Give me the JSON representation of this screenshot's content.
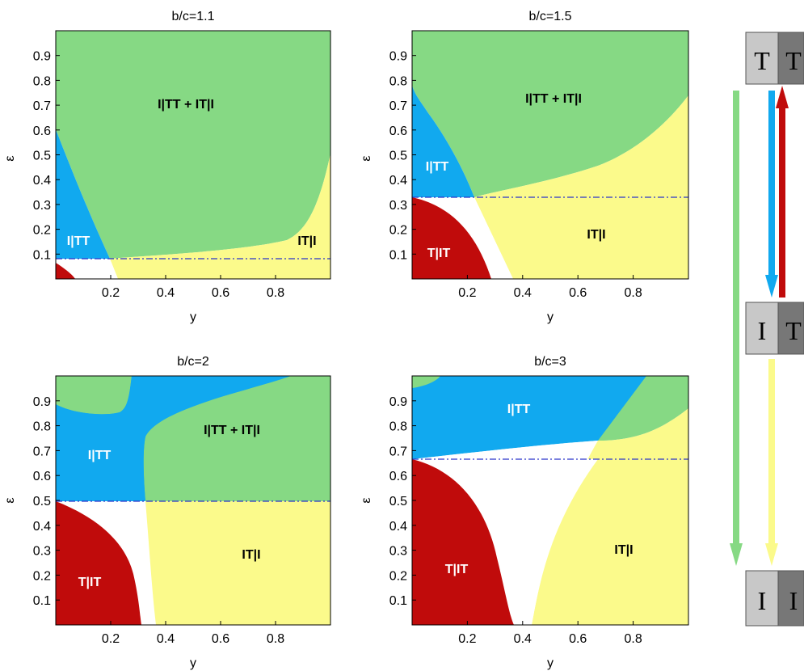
{
  "colors": {
    "green": "#86d984",
    "blue": "#11a9ef",
    "yellow": "#fbfa8b",
    "red": "#c00b0b",
    "threshold_line": "#2a35c9",
    "box_light": "#c8c8c8",
    "box_dark": "#777777"
  },
  "chart_data": [
    {
      "type": "area",
      "title": "b/c=1.1",
      "xlabel": "y",
      "ylabel": "ε",
      "xlim": [
        0,
        1
      ],
      "ylim": [
        0,
        1
      ],
      "xticks": [
        "0.2",
        "0.4",
        "0.6",
        "0.8"
      ],
      "yticks": [
        "0.1",
        "0.2",
        "0.3",
        "0.4",
        "0.5",
        "0.6",
        "0.7",
        "0.8",
        "0.9"
      ],
      "threshold_epsilon": 0.091,
      "regions": [
        {
          "label": "I|TT + IT|I",
          "color": "green"
        },
        {
          "label": "I|TT",
          "color": "blue"
        },
        {
          "label": "IT|I",
          "color": "yellow"
        },
        {
          "label": "",
          "color": "red"
        }
      ]
    },
    {
      "type": "area",
      "title": "b/c=1.5",
      "xlabel": "y",
      "ylabel": "ε",
      "xlim": [
        0,
        1
      ],
      "ylim": [
        0,
        1
      ],
      "xticks": [
        "0.2",
        "0.4",
        "0.6",
        "0.8"
      ],
      "yticks": [
        "0.1",
        "0.2",
        "0.3",
        "0.4",
        "0.5",
        "0.6",
        "0.7",
        "0.8",
        "0.9"
      ],
      "threshold_epsilon": 0.333,
      "regions": [
        {
          "label": "I|TT + IT|I",
          "color": "green"
        },
        {
          "label": "I|TT",
          "color": "blue"
        },
        {
          "label": "IT|I",
          "color": "yellow"
        },
        {
          "label": "T|IT",
          "color": "red"
        }
      ]
    },
    {
      "type": "area",
      "title": "b/c=2",
      "xlabel": "y",
      "ylabel": "ε",
      "xlim": [
        0,
        1
      ],
      "ylim": [
        0,
        1
      ],
      "xticks": [
        "0.2",
        "0.4",
        "0.6",
        "0.8"
      ],
      "yticks": [
        "0.1",
        "0.2",
        "0.3",
        "0.4",
        "0.5",
        "0.6",
        "0.7",
        "0.8",
        "0.9"
      ],
      "threshold_epsilon": 0.5,
      "regions": [
        {
          "label": "I|TT + IT|I",
          "color": "green"
        },
        {
          "label": "I|TT",
          "color": "blue"
        },
        {
          "label": "IT|I",
          "color": "yellow"
        },
        {
          "label": "T|IT",
          "color": "red"
        }
      ]
    },
    {
      "type": "area",
      "title": "b/c=3",
      "xlabel": "y",
      "ylabel": "ε",
      "xlim": [
        0,
        1
      ],
      "ylim": [
        0,
        1
      ],
      "xticks": [
        "0.2",
        "0.4",
        "0.6",
        "0.8"
      ],
      "yticks": [
        "0.1",
        "0.2",
        "0.3",
        "0.4",
        "0.5",
        "0.6",
        "0.7",
        "0.8",
        "0.9"
      ],
      "threshold_epsilon": 0.667,
      "regions": [
        {
          "label": "",
          "color": "green"
        },
        {
          "label": "I|TT",
          "color": "blue"
        },
        {
          "label": "IT|I",
          "color": "yellow"
        },
        {
          "label": "T|IT",
          "color": "red"
        }
      ]
    }
  ],
  "legend": {
    "states": [
      {
        "left": "T",
        "right": "T"
      },
      {
        "left": "I",
        "right": "T"
      },
      {
        "left": "I",
        "right": "I"
      }
    ]
  }
}
